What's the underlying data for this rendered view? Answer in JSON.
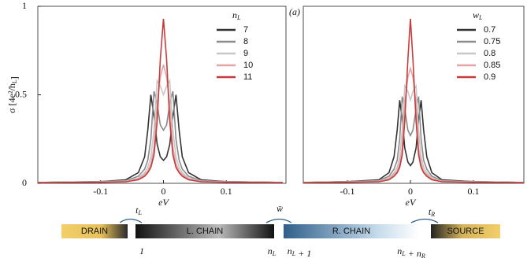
{
  "chart_data": [
    {
      "type": "line",
      "annotation": "(a)",
      "ylabel": [
        {
          "t": "σ [4e²/h",
          "s": "L"
        },
        {
          "t": "]"
        }
      ],
      "xlabel": "eV",
      "legend_title": [
        {
          "t": "n",
          "s": "L"
        }
      ],
      "xlim": [
        -0.2,
        0.195
      ],
      "ylim": [
        0,
        1
      ],
      "xticks": [
        -0.1,
        0,
        0.1
      ],
      "yticks": [
        0,
        0.5,
        1
      ],
      "x": [
        -0.2,
        -0.1,
        -0.06,
        -0.04,
        -0.03,
        -0.025,
        -0.02,
        -0.015,
        -0.01,
        -0.005,
        0,
        0.005,
        0.01,
        0.015,
        0.02,
        0.025,
        0.03,
        0.04,
        0.06,
        0.1,
        0.19
      ],
      "series": [
        {
          "name": "7",
          "color": "#333333",
          "values": [
            0.005,
            0.01,
            0.02,
            0.06,
            0.15,
            0.3,
            0.5,
            0.38,
            0.22,
            0.15,
            0.13,
            0.15,
            0.22,
            0.38,
            0.5,
            0.3,
            0.15,
            0.06,
            0.02,
            0.01,
            0.005
          ]
        },
        {
          "name": "8",
          "color": "#8a8a8a",
          "values": [
            0.005,
            0.01,
            0.015,
            0.04,
            0.08,
            0.13,
            0.25,
            0.52,
            0.45,
            0.33,
            0.3,
            0.33,
            0.45,
            0.52,
            0.25,
            0.13,
            0.08,
            0.04,
            0.015,
            0.01,
            0.005
          ]
        },
        {
          "name": "9",
          "color": "#c8c8c8",
          "values": [
            0.005,
            0.008,
            0.012,
            0.03,
            0.06,
            0.09,
            0.15,
            0.3,
            0.58,
            0.55,
            0.5,
            0.55,
            0.58,
            0.3,
            0.15,
            0.09,
            0.06,
            0.03,
            0.012,
            0.008,
            0.005
          ]
        },
        {
          "name": "10",
          "color": "#e2a4a4",
          "values": [
            0.005,
            0.007,
            0.01,
            0.025,
            0.05,
            0.07,
            0.11,
            0.2,
            0.45,
            0.6,
            0.67,
            0.6,
            0.45,
            0.2,
            0.11,
            0.07,
            0.05,
            0.025,
            0.01,
            0.007,
            0.005
          ]
        },
        {
          "name": "11",
          "color": "#c43c3c",
          "values": [
            0.005,
            0.006,
            0.009,
            0.02,
            0.04,
            0.06,
            0.09,
            0.16,
            0.35,
            0.7,
            0.93,
            0.7,
            0.35,
            0.16,
            0.09,
            0.06,
            0.04,
            0.02,
            0.009,
            0.006,
            0.005
          ]
        }
      ]
    },
    {
      "type": "line",
      "xlabel": "eV",
      "legend_title": [
        {
          "t": "w",
          "s": "L"
        }
      ],
      "xlim": [
        -0.17,
        0.18
      ],
      "ylim": [
        0,
        1
      ],
      "xticks": [
        -0.1,
        0,
        0.1
      ],
      "x": [
        -0.17,
        -0.1,
        -0.05,
        -0.034,
        -0.026,
        -0.021,
        -0.017,
        -0.013,
        -0.009,
        -0.004,
        0,
        0.004,
        0.009,
        0.013,
        0.017,
        0.021,
        0.026,
        0.034,
        0.05,
        0.1,
        0.18
      ],
      "series": [
        {
          "name": "0.7",
          "color": "#333333",
          "values": [
            0.005,
            0.01,
            0.02,
            0.06,
            0.15,
            0.3,
            0.47,
            0.36,
            0.2,
            0.12,
            0.1,
            0.12,
            0.2,
            0.36,
            0.47,
            0.3,
            0.15,
            0.06,
            0.02,
            0.01,
            0.005
          ]
        },
        {
          "name": "0.75",
          "color": "#8a8a8a",
          "values": [
            0.005,
            0.01,
            0.015,
            0.04,
            0.08,
            0.13,
            0.25,
            0.49,
            0.42,
            0.3,
            0.27,
            0.3,
            0.42,
            0.49,
            0.25,
            0.13,
            0.08,
            0.04,
            0.015,
            0.01,
            0.005
          ]
        },
        {
          "name": "0.8",
          "color": "#c8c8c8",
          "values": [
            0.005,
            0.008,
            0.012,
            0.03,
            0.06,
            0.09,
            0.15,
            0.3,
            0.55,
            0.52,
            0.47,
            0.52,
            0.55,
            0.3,
            0.15,
            0.09,
            0.06,
            0.03,
            0.012,
            0.008,
            0.005
          ]
        },
        {
          "name": "0.85",
          "color": "#e2a4a4",
          "values": [
            0.005,
            0.007,
            0.01,
            0.025,
            0.05,
            0.07,
            0.11,
            0.2,
            0.45,
            0.6,
            0.65,
            0.6,
            0.45,
            0.2,
            0.11,
            0.07,
            0.05,
            0.025,
            0.01,
            0.007,
            0.005
          ]
        },
        {
          "name": "0.9",
          "color": "#c43c3c",
          "values": [
            0.005,
            0.006,
            0.009,
            0.02,
            0.04,
            0.06,
            0.09,
            0.16,
            0.35,
            0.7,
            0.93,
            0.7,
            0.35,
            0.16,
            0.09,
            0.06,
            0.04,
            0.02,
            0.009,
            0.006,
            0.005
          ]
        }
      ]
    }
  ],
  "diagram": {
    "blocks": [
      "DRAIN",
      "L. CHAIN",
      "R. CHAIN",
      "SOURCE"
    ],
    "couplings": [
      [
        {
          "t": "t",
          "s": "L"
        }
      ],
      [
        {
          "t": "w̄"
        }
      ],
      [
        {
          "t": "t",
          "s": "R"
        }
      ]
    ],
    "indices": [
      [
        {
          "t": "1"
        }
      ],
      [
        {
          "t": "n",
          "s": "L"
        }
      ],
      [
        {
          "t": "n",
          "s": "L"
        },
        {
          "t": " + 1"
        }
      ],
      [
        {
          "t": "n",
          "s": "L"
        },
        {
          "t": " + n",
          "s": "R"
        }
      ]
    ]
  }
}
